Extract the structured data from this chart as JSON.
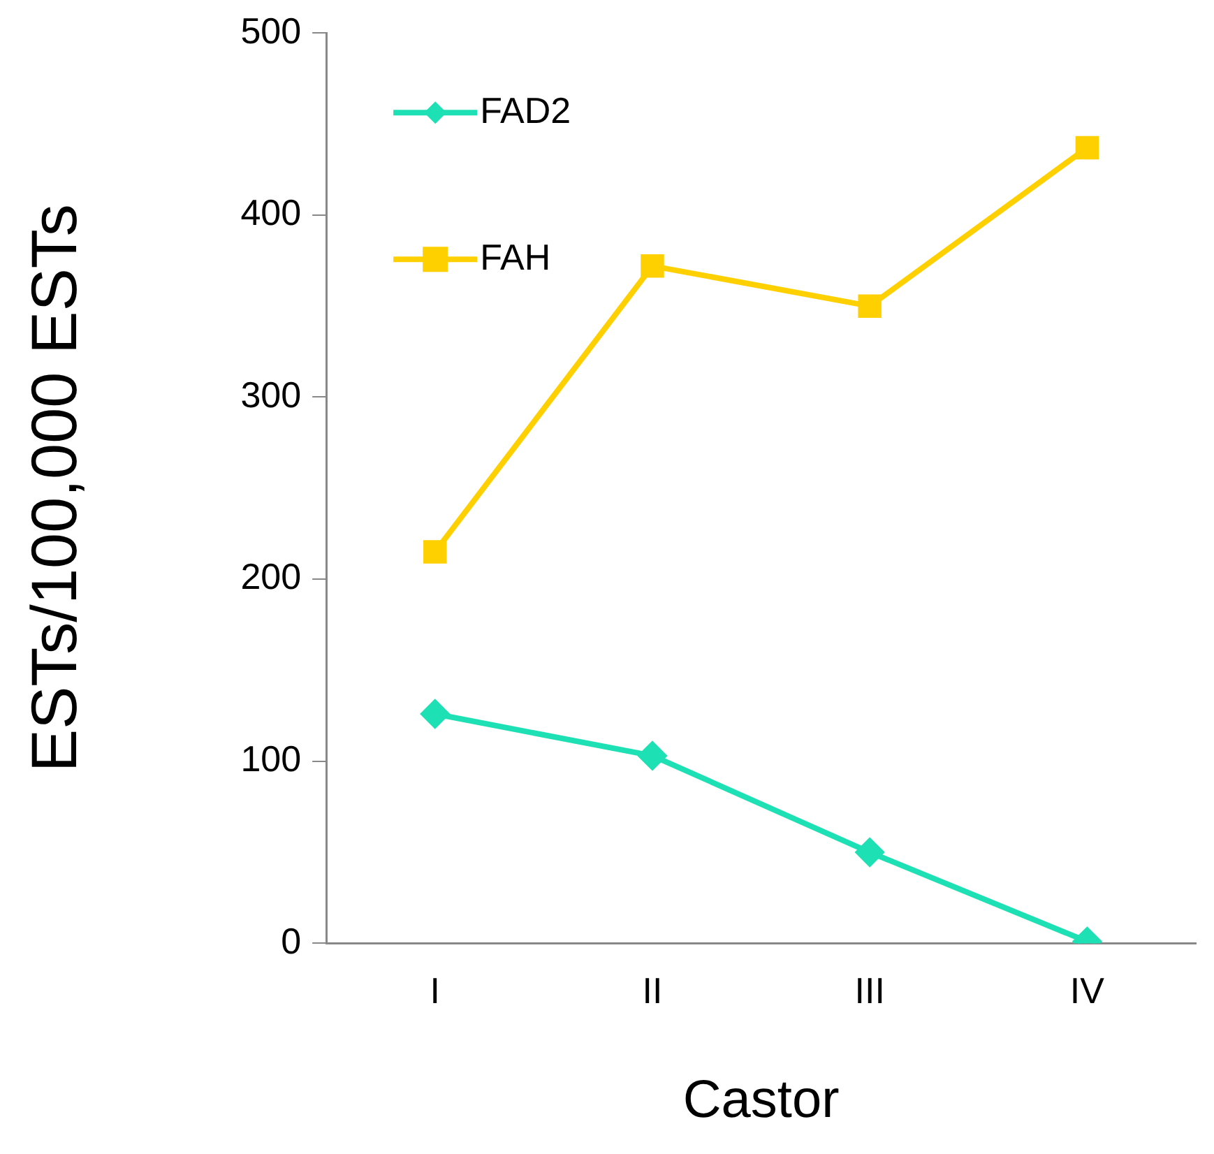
{
  "chart_data": {
    "type": "line",
    "xlabel": "Castor",
    "ylabel": "ESTs/100,000 ESTs",
    "categories": [
      "I",
      "II",
      "III",
      "IV"
    ],
    "series": [
      {
        "name": "FAD2",
        "color": "#1de0b4",
        "marker": "diamond",
        "values": [
          126,
          103,
          50,
          1
        ]
      },
      {
        "name": "FAH",
        "color": "#ffd000",
        "marker": "square",
        "values": [
          215,
          372,
          350,
          437
        ]
      }
    ],
    "ylim": [
      0,
      500
    ],
    "yticks": [
      0,
      100,
      200,
      300,
      400,
      500
    ],
    "grid": false,
    "legend": "top left"
  }
}
